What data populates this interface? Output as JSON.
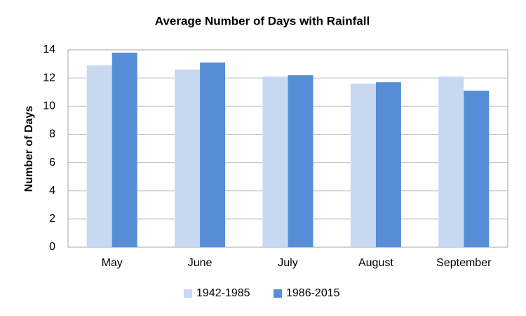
{
  "chart_data": {
    "type": "bar",
    "title": "Average Number of Days with Rainfall",
    "y_label": "Number of Days",
    "categories": [
      "May",
      "June",
      "July",
      "August",
      "September"
    ],
    "series": [
      {
        "name": "1942-1985",
        "color": "#c6d9f1",
        "values": [
          12.9,
          12.6,
          12.1,
          11.6,
          12.1
        ]
      },
      {
        "name": "1986-2015",
        "color": "#558ed5",
        "values": [
          13.8,
          13.1,
          12.2,
          11.7,
          11.1
        ]
      }
    ],
    "ylim": [
      0,
      14
    ],
    "yticks": [
      0,
      2,
      4,
      6,
      8,
      10,
      12,
      14
    ],
    "grid": true,
    "legend": "bottom"
  }
}
